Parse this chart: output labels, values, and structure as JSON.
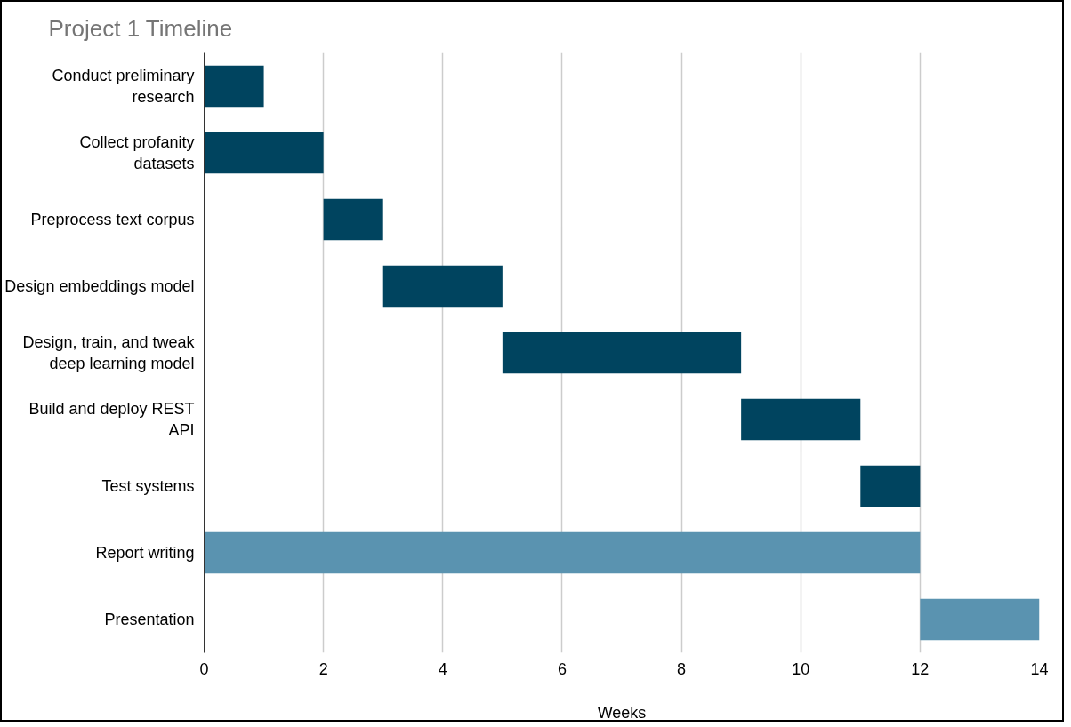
{
  "chart_data": {
    "type": "bar",
    "orientation": "horizontal",
    "title": "Project 1 Timeline",
    "xlabel": "Weeks",
    "categories": [
      "Conduct preliminary research",
      "Collect profanity datasets",
      "Preprocess text corpus",
      "Design embeddings model",
      "Design, train, and tweak deep learning model",
      "Build and deploy REST API",
      "Test systems",
      "Report writing",
      "Presentation"
    ],
    "base": [
      0,
      0,
      2,
      3,
      5,
      9,
      11,
      0,
      12
    ],
    "values": [
      1,
      2,
      1,
      2,
      4,
      2,
      1,
      12,
      2
    ],
    "colors": [
      "#00445f",
      "#00445f",
      "#00445f",
      "#00445f",
      "#00445f",
      "#00445f",
      "#00445f",
      "#5a93b0",
      "#5a93b0"
    ],
    "xlim": [
      0,
      14
    ],
    "xticks": [
      0,
      2,
      4,
      6,
      8,
      10,
      12,
      14
    ],
    "grid": "x"
  }
}
